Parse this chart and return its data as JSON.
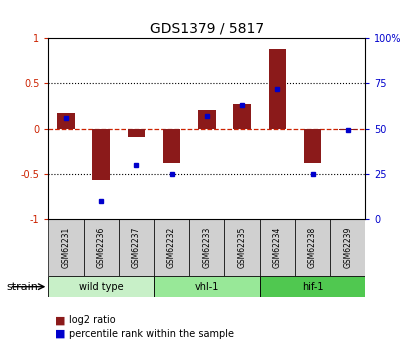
{
  "title": "GDS1379 / 5817",
  "samples": [
    "GSM62231",
    "GSM62236",
    "GSM62237",
    "GSM62232",
    "GSM62233",
    "GSM62235",
    "GSM62234",
    "GSM62238",
    "GSM62239"
  ],
  "log2_ratio": [
    0.17,
    -0.57,
    -0.09,
    -0.38,
    0.2,
    0.27,
    0.88,
    -0.38,
    -0.02
  ],
  "percentile": [
    56,
    10,
    30,
    25,
    57,
    63,
    72,
    25,
    49
  ],
  "groups": [
    {
      "label": "wild type",
      "start": 0,
      "end": 3,
      "color": "#c8f0c8"
    },
    {
      "label": "vhl-1",
      "start": 3,
      "end": 6,
      "color": "#98e898"
    },
    {
      "label": "hif-1",
      "start": 6,
      "end": 9,
      "color": "#50c850"
    }
  ],
  "bar_color": "#8B1A1A",
  "dot_color": "#0000CC",
  "ylim": [
    -1.0,
    1.0
  ],
  "yticks_left": [
    -1,
    -0.5,
    0,
    0.5,
    1
  ],
  "ytick_labels_left": [
    "-1",
    "-0.5",
    "0",
    "0.5",
    "1"
  ],
  "yticks_right_vals": [
    0,
    25,
    50,
    75,
    100
  ],
  "ytick_labels_right": [
    "0",
    "25",
    "50",
    "75",
    "100%"
  ],
  "zero_line_color": "#CC2200",
  "grid_color": "#000000",
  "legend_log2": "log2 ratio",
  "legend_pct": "percentile rank within the sample",
  "strain_label": "strain",
  "bar_width": 0.5,
  "sample_box_color": "#D0D0D0",
  "left_axis_color": "#CC2200",
  "right_axis_color": "#0000CC"
}
